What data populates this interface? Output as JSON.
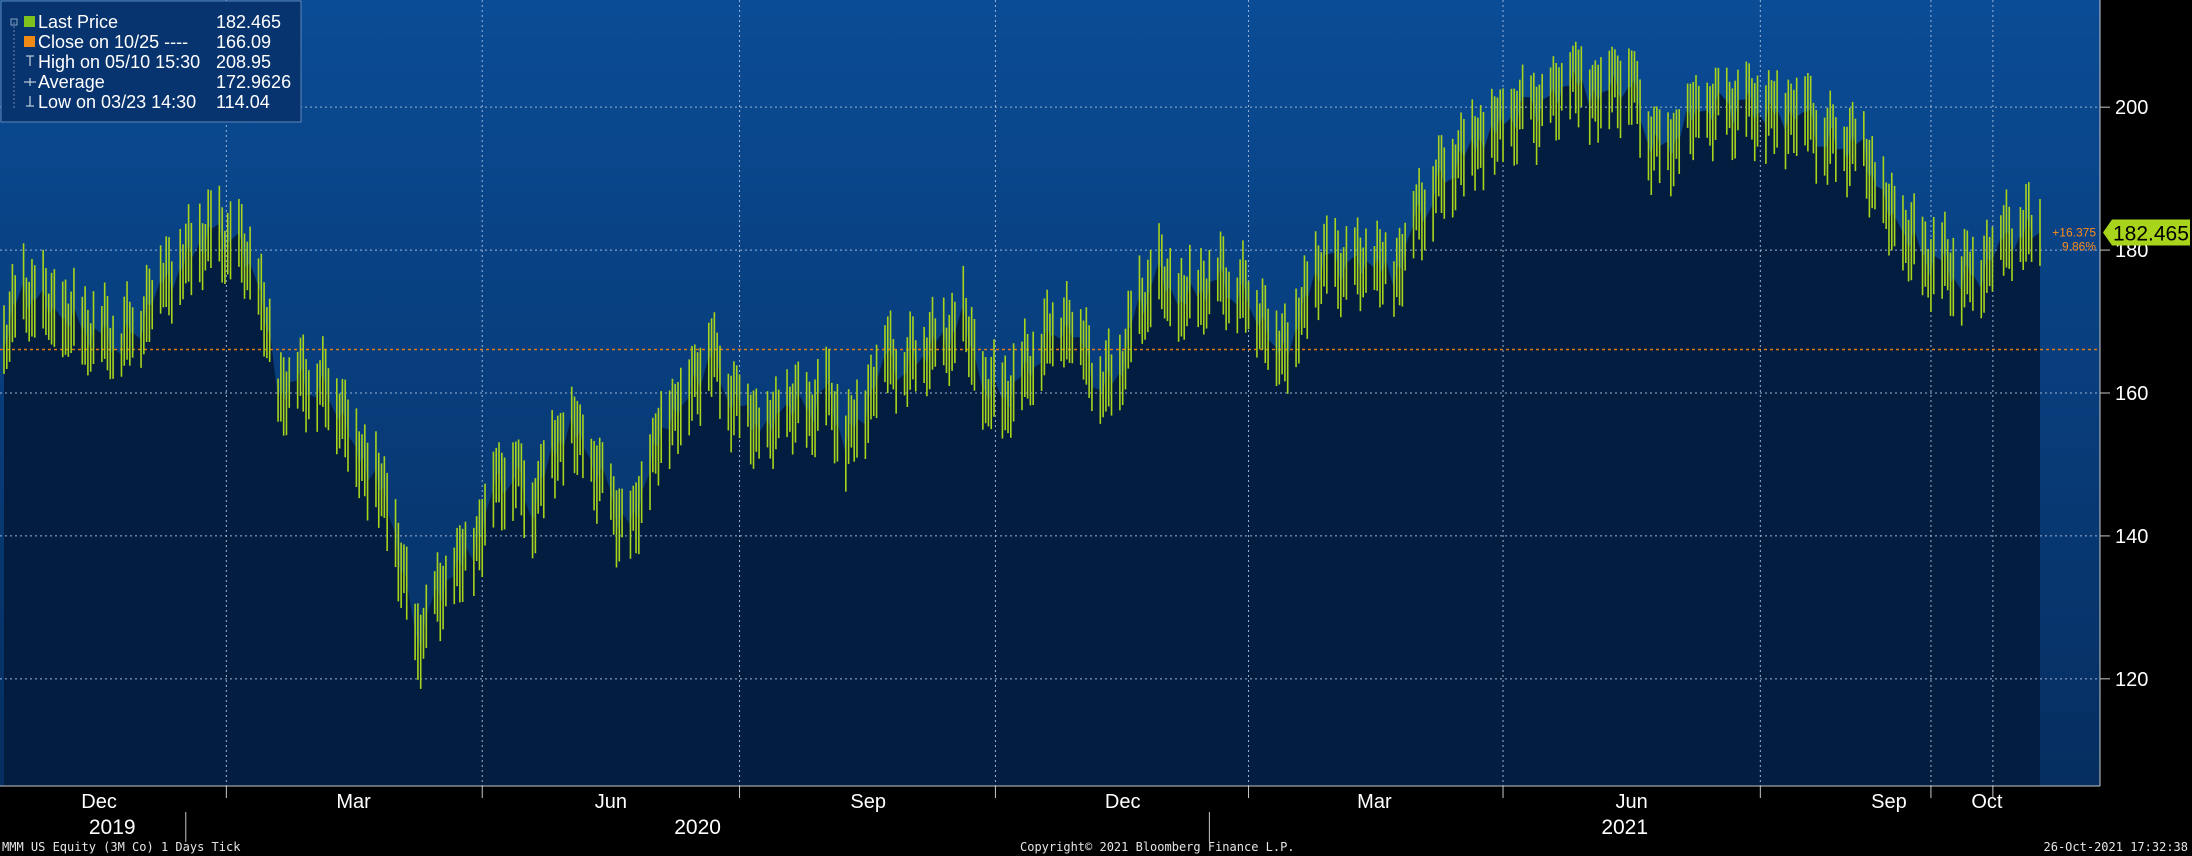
{
  "chart_data": {
    "type": "line",
    "style": "bar-ticks",
    "ylim": [
      105,
      215
    ],
    "yticks": [
      120,
      140,
      160,
      180,
      200
    ],
    "grid": true,
    "legend_position": "top-left",
    "x_months": [
      "Dec",
      "Mar",
      "Jun",
      "Sep",
      "Dec",
      "Mar",
      "Jun",
      "Sep",
      "Oct"
    ],
    "x_years": [
      "2019",
      "2020",
      "2021"
    ],
    "series": [
      {
        "name": "Last Price",
        "color": "#a8d41c",
        "unit": "daily",
        "points": [
          [
            "2019-10-28",
            168
          ],
          [
            "2019-11-04",
            174
          ],
          [
            "2019-11-11",
            172
          ],
          [
            "2019-11-18",
            170
          ],
          [
            "2019-11-25",
            169
          ],
          [
            "2019-12-02",
            168
          ],
          [
            "2019-12-09",
            167
          ],
          [
            "2019-12-16",
            170
          ],
          [
            "2019-12-23",
            176
          ],
          [
            "2019-12-30",
            177
          ],
          [
            "2020-01-06",
            181
          ],
          [
            "2020-01-13",
            182
          ],
          [
            "2020-01-20",
            180
          ],
          [
            "2020-01-27",
            175
          ],
          [
            "2020-02-03",
            160
          ],
          [
            "2020-02-10",
            162
          ],
          [
            "2020-02-17",
            161
          ],
          [
            "2020-02-24",
            159
          ],
          [
            "2020-03-02",
            152
          ],
          [
            "2020-03-09",
            148
          ],
          [
            "2020-03-16",
            140
          ],
          [
            "2020-03-23",
            125
          ],
          [
            "2020-03-30",
            130
          ],
          [
            "2020-04-06",
            135
          ],
          [
            "2020-04-13",
            138
          ],
          [
            "2020-04-20",
            147
          ],
          [
            "2020-04-27",
            149
          ],
          [
            "2020-05-04",
            144
          ],
          [
            "2020-05-11",
            152
          ],
          [
            "2020-05-18",
            155
          ],
          [
            "2020-05-25",
            150
          ],
          [
            "2020-06-01",
            145
          ],
          [
            "2020-06-08",
            140
          ],
          [
            "2020-06-15",
            150
          ],
          [
            "2020-06-22",
            157
          ],
          [
            "2020-06-29",
            160
          ],
          [
            "2020-07-06",
            166
          ],
          [
            "2020-07-13",
            160
          ],
          [
            "2020-07-20",
            157
          ],
          [
            "2020-07-27",
            154
          ],
          [
            "2020-08-03",
            158
          ],
          [
            "2020-08-10",
            157
          ],
          [
            "2020-08-17",
            160
          ],
          [
            "2020-08-24",
            153
          ],
          [
            "2020-08-31",
            158
          ],
          [
            "2020-09-07",
            166
          ],
          [
            "2020-09-14",
            163
          ],
          [
            "2020-09-21",
            166
          ],
          [
            "2020-09-28",
            167
          ],
          [
            "2020-10-05",
            170
          ],
          [
            "2020-10-12",
            160
          ],
          [
            "2020-10-19",
            159
          ],
          [
            "2020-10-26",
            162
          ],
          [
            "2020-11-02",
            166
          ],
          [
            "2020-11-09",
            170
          ],
          [
            "2020-11-16",
            168
          ],
          [
            "2020-11-23",
            160
          ],
          [
            "2020-11-30",
            163
          ],
          [
            "2020-12-07",
            172
          ],
          [
            "2020-12-14",
            176
          ],
          [
            "2020-12-21",
            172
          ],
          [
            "2020-12-28",
            174
          ],
          [
            "2021-01-04",
            176
          ],
          [
            "2021-01-11",
            174
          ],
          [
            "2021-01-18",
            172
          ],
          [
            "2021-01-25",
            166
          ],
          [
            "2021-02-01",
            168
          ],
          [
            "2021-02-08",
            177
          ],
          [
            "2021-02-15",
            178
          ],
          [
            "2021-02-22",
            177
          ],
          [
            "2021-03-01",
            178
          ],
          [
            "2021-03-08",
            176
          ],
          [
            "2021-03-15",
            184
          ],
          [
            "2021-03-22",
            188
          ],
          [
            "2021-03-29",
            192
          ],
          [
            "2021-04-05",
            195
          ],
          [
            "2021-04-12",
            196
          ],
          [
            "2021-04-19",
            198
          ],
          [
            "2021-04-26",
            200
          ],
          [
            "2021-05-03",
            200
          ],
          [
            "2021-05-10",
            204
          ],
          [
            "2021-05-17",
            202
          ],
          [
            "2021-05-24",
            203
          ],
          [
            "2021-05-31",
            204
          ],
          [
            "2021-06-07",
            196
          ],
          [
            "2021-06-14",
            194
          ],
          [
            "2021-06-21",
            198
          ],
          [
            "2021-06-28",
            199
          ],
          [
            "2021-07-05",
            200
          ],
          [
            "2021-07-12",
            200
          ],
          [
            "2021-07-19",
            199
          ],
          [
            "2021-07-26",
            199
          ],
          [
            "2021-08-02",
            200
          ],
          [
            "2021-08-09",
            195
          ],
          [
            "2021-08-16",
            195
          ],
          [
            "2021-08-23",
            194
          ],
          [
            "2021-08-30",
            186
          ],
          [
            "2021-09-06",
            182
          ],
          [
            "2021-09-13",
            179
          ],
          [
            "2021-09-20",
            178
          ],
          [
            "2021-09-27",
            176
          ],
          [
            "2021-10-04",
            177
          ],
          [
            "2021-10-11",
            182
          ],
          [
            "2021-10-18",
            182
          ],
          [
            "2021-10-25",
            182.465
          ]
        ]
      }
    ],
    "reference_lines": [
      {
        "name": "Close on 10/25",
        "value": 166.09,
        "color": "#e07a12",
        "style": "dotted"
      }
    ],
    "legend": [
      {
        "label": "Last Price",
        "value": "182.465",
        "marker": "green-square"
      },
      {
        "label": "Close on 10/25 ----",
        "value": "166.09",
        "marker": "orange-square"
      },
      {
        "label": "High on 05/10 15:30",
        "value": "208.95",
        "marker": "high-tick"
      },
      {
        "label": "Average",
        "value": "172.9626",
        "marker": "average-cross"
      },
      {
        "label": "Low on 03/23 14:30",
        "value": "114.04",
        "marker": "low-tick"
      }
    ],
    "last_price_tag": "182.465",
    "change_tag": "+16.375",
    "change_pct_tag": "9.86%"
  },
  "footer": {
    "left": "MMM US Equity (3M Co) 1 Days  Tick",
    "center": "Copyright© 2021 Bloomberg Finance L.P.",
    "right": "26-Oct-2021 17:32:38"
  },
  "colors": {
    "bg_top": "#08468c",
    "bg_bottom": "#072a58",
    "area": "#021d3f",
    "bars": "#a8d41c",
    "grid": "#9db4d6",
    "close_line": "#e07a12"
  }
}
